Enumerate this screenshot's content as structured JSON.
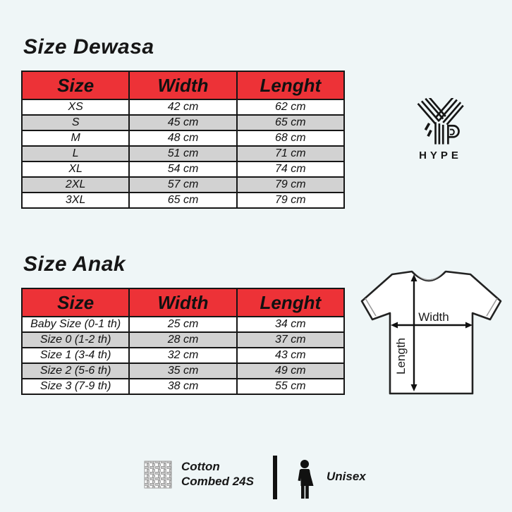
{
  "adult": {
    "title": "Size Dewasa",
    "headers": [
      "Size",
      "Width",
      "Lenght"
    ],
    "rows": [
      [
        "XS",
        "42 cm",
        "62 cm"
      ],
      [
        "S",
        "45 cm",
        "65 cm"
      ],
      [
        "M",
        "48 cm",
        "68 cm"
      ],
      [
        "L",
        "51 cm",
        "71 cm"
      ],
      [
        "XL",
        "54 cm",
        "74 cm"
      ],
      [
        "2XL",
        "57 cm",
        "79 cm"
      ],
      [
        "3XL",
        "65 cm",
        "79 cm"
      ]
    ]
  },
  "kids": {
    "title": "Size Anak",
    "headers": [
      "Size",
      "Width",
      "Lenght"
    ],
    "rows": [
      [
        "Baby Size (0-1 th)",
        "25 cm",
        "34 cm"
      ],
      [
        "Size 0 (1-2 th)",
        "28 cm",
        "37 cm"
      ],
      [
        "Size 1 (3-4 th)",
        "32 cm",
        "43 cm"
      ],
      [
        "Size 2 (5-6 th)",
        "35 cm",
        "49 cm"
      ],
      [
        "Size 3 (7-9 th)",
        "38 cm",
        "55 cm"
      ]
    ]
  },
  "brand": {
    "name": "HYPE"
  },
  "diagram": {
    "width_label": "Width",
    "length_label": "Length"
  },
  "footer": {
    "material_line1": "Cotton",
    "material_line2": "Combed 24S",
    "gender": "Unisex"
  },
  "colors": {
    "background": "#EFF6F7",
    "header_red": "#ED3237",
    "row_gray": "#D2D2D2",
    "row_white": "#FFFFFF",
    "border_black": "#161616"
  },
  "icons": [
    "hype-logo-icon",
    "tshirt-diagram-icon",
    "fabric-weave-icon",
    "unisex-person-icon"
  ]
}
